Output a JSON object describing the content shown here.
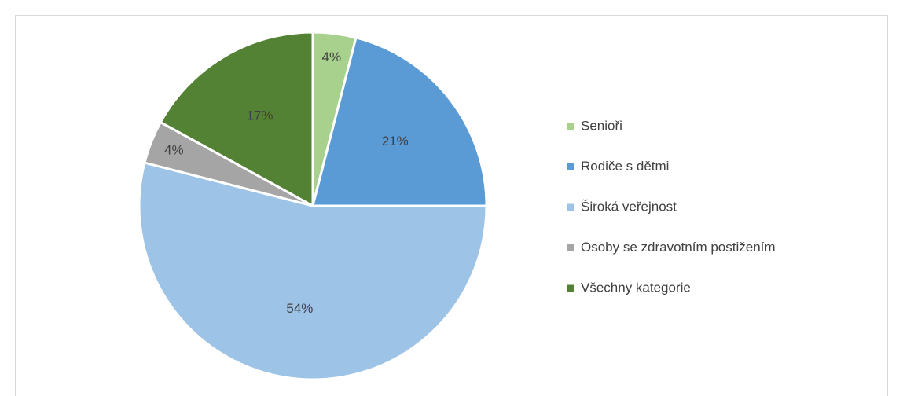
{
  "chart_data": {
    "type": "pie",
    "categories": [
      "Senioři",
      "Rodiče s dětmi",
      "Široká veřejnost",
      "Osoby se zdravotním postižením",
      "Všechny kategorie"
    ],
    "values": [
      4,
      21,
      54,
      4,
      17
    ],
    "value_labels": [
      "4%",
      "21%",
      "54%",
      "4%",
      "17%"
    ],
    "colors": [
      "#a9d18e",
      "#5b9bd5",
      "#9dc3e6",
      "#a5a5a5",
      "#548235"
    ],
    "legend": "right"
  }
}
